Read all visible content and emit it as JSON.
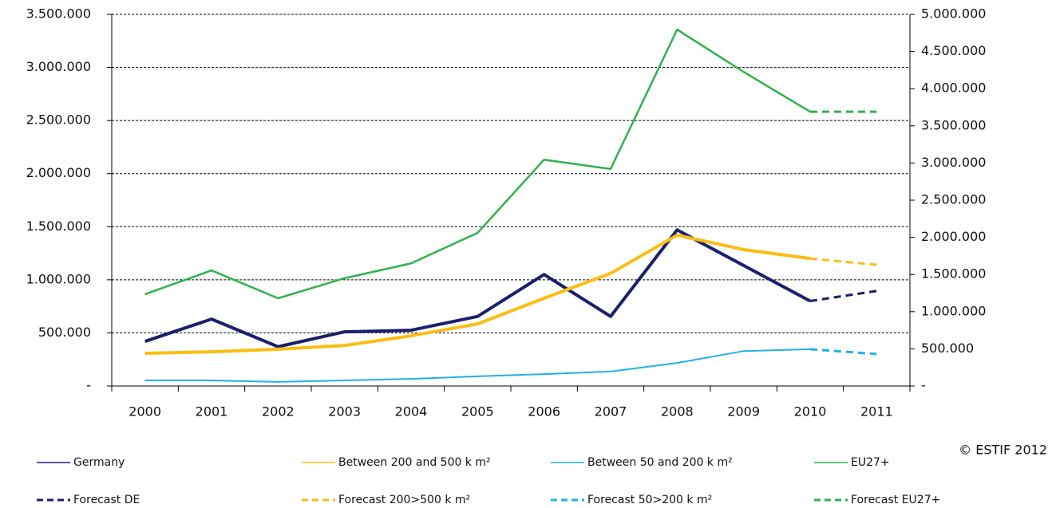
{
  "chart_data": {
    "type": "line",
    "categories": [
      "2000",
      "2001",
      "2002",
      "2003",
      "2004",
      "2005",
      "2006",
      "2007",
      "2008",
      "2009",
      "2010",
      "2011"
    ],
    "series": [
      {
        "name": "Germany",
        "color": "#1b1f6b",
        "axis": "y",
        "dashed": false,
        "values": [
          420000,
          630000,
          370000,
          510000,
          525000,
          655000,
          1050000,
          655000,
          1470000,
          1135000,
          800000,
          null
        ]
      },
      {
        "name": "Between 200 and 500 k m²",
        "color": "#fbbd12",
        "axis": "y2",
        "dashed": false,
        "values": [
          440000,
          460000,
          495000,
          545000,
          675000,
          835000,
          1180000,
          1515000,
          2030000,
          1835000,
          1715000,
          null
        ]
      },
      {
        "name": "Between 50 and 200 k m²",
        "color": "#1fb2e8",
        "axis": "y2",
        "dashed": false,
        "values": [
          75000,
          75000,
          55000,
          75000,
          95000,
          130000,
          160000,
          195000,
          310000,
          470000,
          495000,
          null
        ]
      },
      {
        "name": "EU27+",
        "color": "#2fb24c",
        "axis": "y2",
        "dashed": false,
        "values": [
          1235000,
          1555000,
          1180000,
          1450000,
          1650000,
          2060000,
          3045000,
          2920000,
          4795000,
          4225000,
          3690000,
          null
        ]
      },
      {
        "name": "Forecast DE",
        "color": "#1b1f6b",
        "axis": "y",
        "dashed": true,
        "values": [
          null,
          null,
          null,
          null,
          null,
          null,
          null,
          null,
          null,
          null,
          800000,
          895000
        ]
      },
      {
        "name": "Forecast 200>500 k m²",
        "color": "#fbbd12",
        "axis": "y2",
        "dashed": true,
        "values": [
          null,
          null,
          null,
          null,
          null,
          null,
          null,
          null,
          null,
          null,
          1715000,
          1630000
        ]
      },
      {
        "name": "Forecast 50>200 k m²",
        "color": "#1fb2e8",
        "axis": "y2",
        "dashed": true,
        "values": [
          null,
          null,
          null,
          null,
          null,
          null,
          null,
          null,
          null,
          null,
          495000,
          430000
        ]
      },
      {
        "name": "Forecast EU27+",
        "color": "#2fb24c",
        "axis": "y2",
        "dashed": true,
        "values": [
          null,
          null,
          null,
          null,
          null,
          null,
          null,
          null,
          null,
          null,
          3690000,
          3690000
        ]
      }
    ],
    "ylim": [
      0,
      3500000
    ],
    "yticks": [
      {
        "value": 0,
        "label": "-"
      },
      {
        "value": 500000,
        "label": "500.000"
      },
      {
        "value": 1000000,
        "label": "1.000.000"
      },
      {
        "value": 1500000,
        "label": "1.500.000"
      },
      {
        "value": 2000000,
        "label": "2.000.000"
      },
      {
        "value": 2500000,
        "label": "2.500.000"
      },
      {
        "value": 3000000,
        "label": "3.000.000"
      },
      {
        "value": 3500000,
        "label": "3.500.000"
      }
    ],
    "y2lim": [
      0,
      5000000
    ],
    "y2ticks": [
      {
        "value": 0,
        "label": "-"
      },
      {
        "value": 500000,
        "label": "500.000"
      },
      {
        "value": 1000000,
        "label": "1.000.000"
      },
      {
        "value": 1500000,
        "label": "1.500.000"
      },
      {
        "value": 2000000,
        "label": "2.000.000"
      },
      {
        "value": 2500000,
        "label": "2.500.000"
      },
      {
        "value": 3000000,
        "label": "3.000.000"
      },
      {
        "value": 3500000,
        "label": "3.500.000"
      },
      {
        "value": 4000000,
        "label": "4.000.000"
      },
      {
        "value": 4500000,
        "label": "4.500.000"
      },
      {
        "value": 5000000,
        "label": "5.000.000"
      }
    ],
    "grid": true,
    "annotations": [
      "© ESTIF 2012"
    ]
  }
}
